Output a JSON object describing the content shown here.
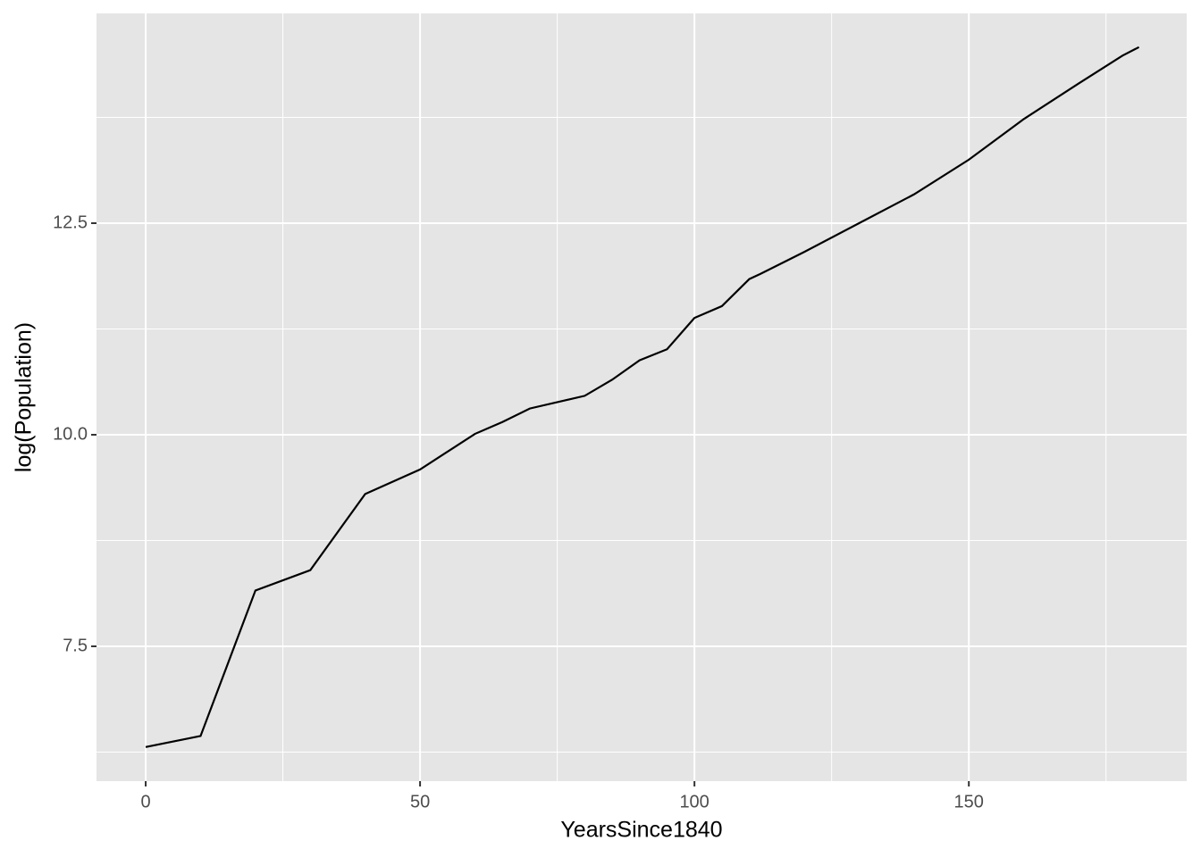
{
  "chart_data": {
    "type": "line",
    "x_label": "YearsSince1840",
    "y_label": "log(Population)",
    "x": [
      0,
      10,
      20,
      30,
      40,
      50,
      60,
      65,
      70,
      80,
      85,
      90,
      95,
      100,
      105,
      110,
      112,
      120,
      130,
      140,
      150,
      160,
      170,
      178,
      181
    ],
    "series": [
      {
        "color": "#000000",
        "values": [
          6.31,
          6.44,
          8.16,
          8.4,
          9.3,
          9.59,
          10.01,
          10.15,
          10.31,
          10.46,
          10.65,
          10.88,
          11.01,
          11.38,
          11.52,
          11.84,
          11.9,
          12.16,
          12.5,
          12.84,
          13.25,
          13.73,
          14.15,
          14.48,
          14.58
        ]
      }
    ],
    "xlim": [
      -8.96,
      189.7
    ],
    "ylim": [
      5.907,
      14.979
    ],
    "xticks": [
      0,
      50,
      100,
      150
    ],
    "yticks": [
      7.5,
      {
        "value": 10,
        "label": "10.0"
      },
      12.5
    ],
    "minor_xticks": [
      25,
      75,
      125,
      175
    ],
    "minor_yticks": [
      6.25,
      8.75,
      11.25,
      13.75
    ],
    "grid": true,
    "panel_color": "#e5e5e5"
  }
}
